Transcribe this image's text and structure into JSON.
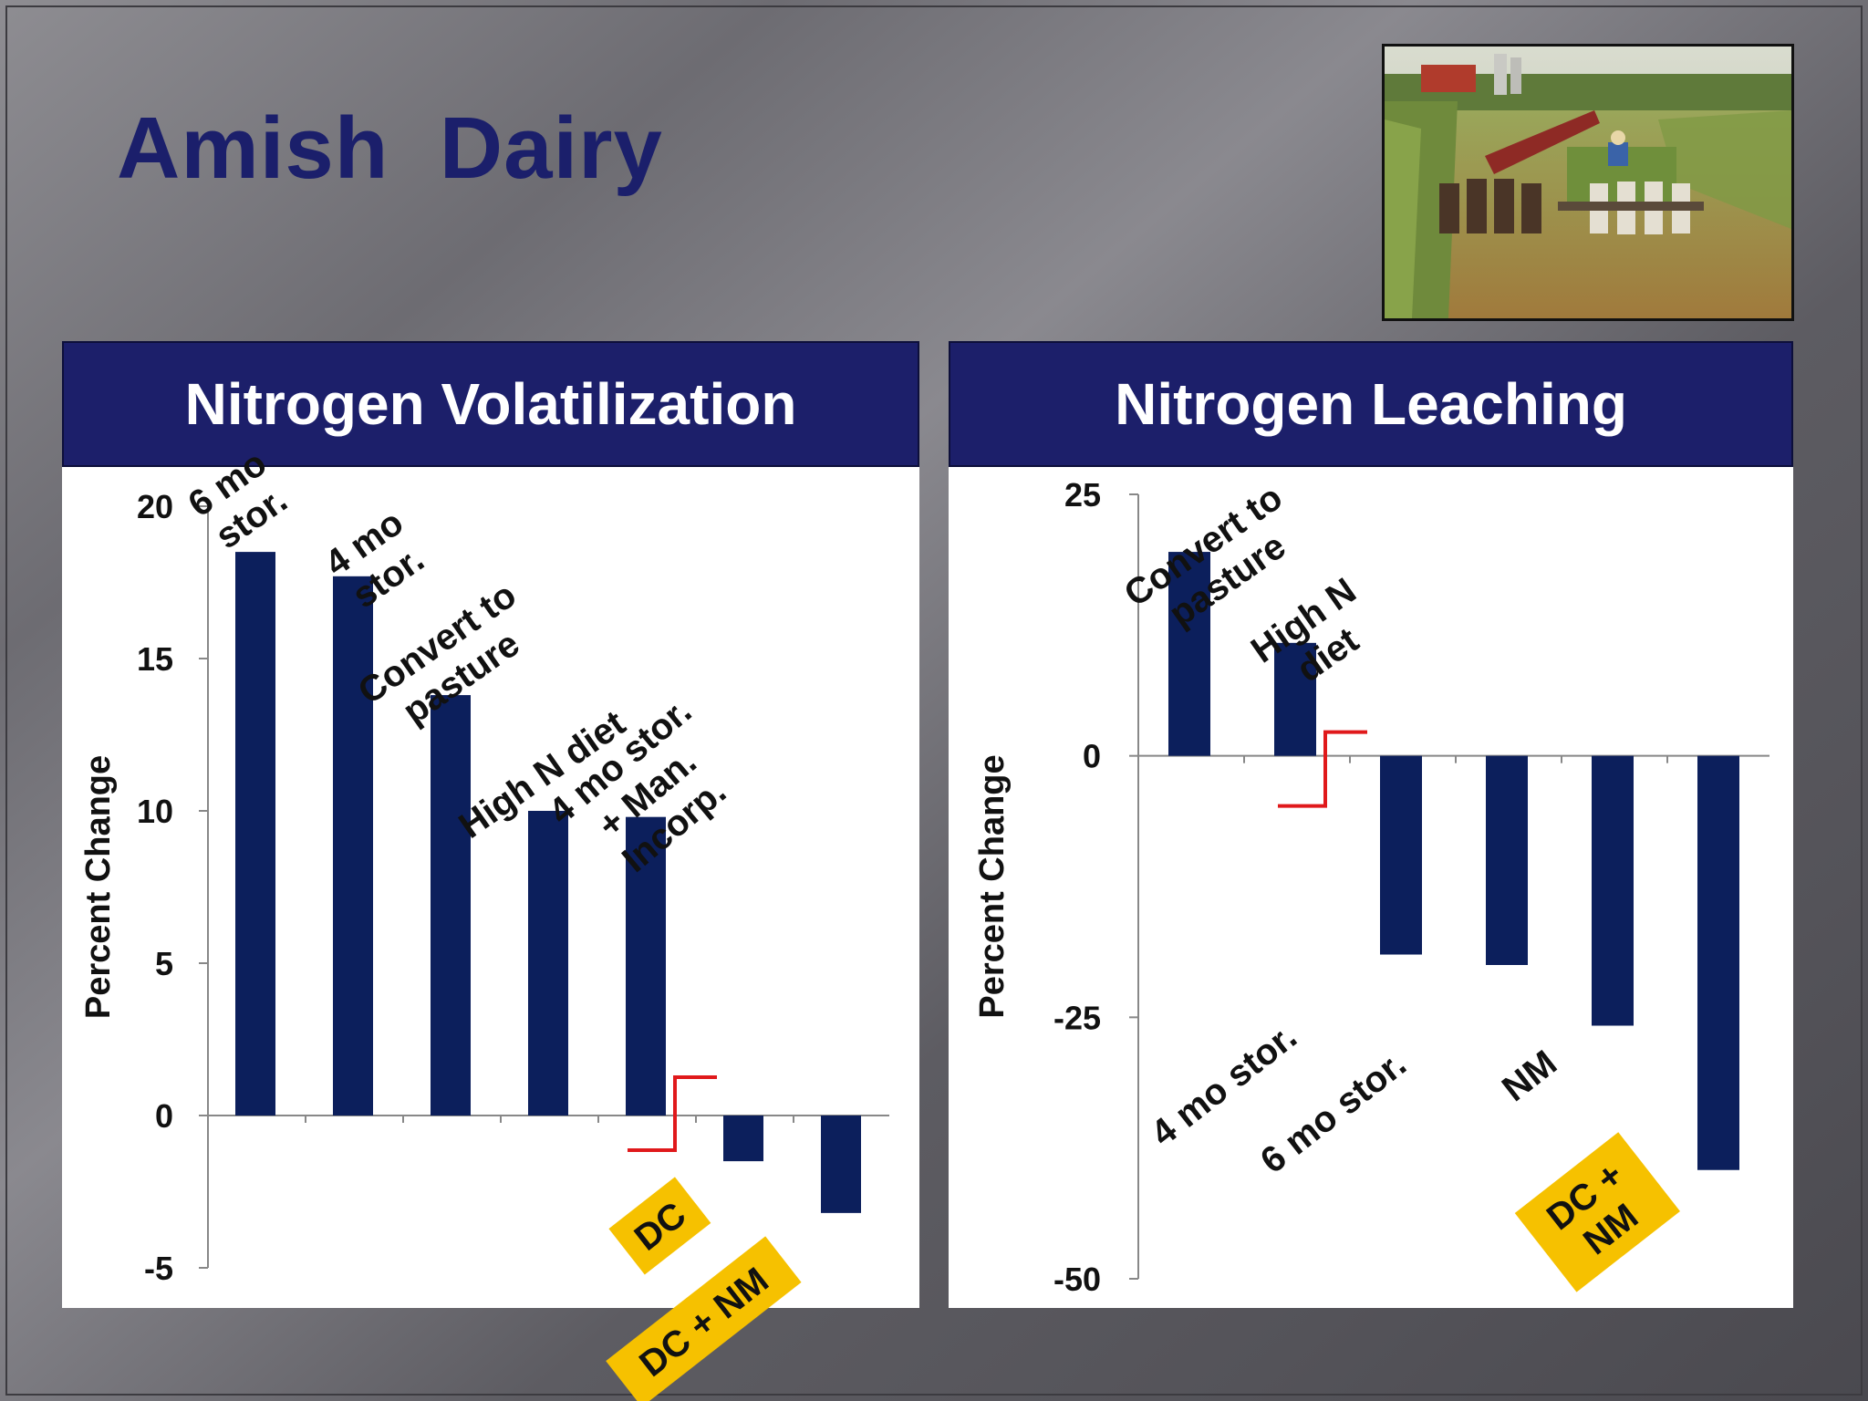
{
  "title": "Amish  Dairy",
  "photo": {
    "icon": "farm-photo"
  },
  "colors": {
    "bar": "#0c1f5c",
    "header": "#1c1f6a",
    "title": "#1b1f6b",
    "tag": "#f6c100",
    "marker": "#e0191b"
  },
  "chart_data": [
    {
      "type": "bar",
      "title": "Nitrogen Volatilization",
      "ylabel": "Percent Change",
      "xlabel": "",
      "ylim": [
        -5,
        20
      ],
      "yticks": [
        20,
        15,
        10,
        5,
        0,
        -5
      ],
      "categories": [
        "6 mo stor.",
        "4 mo stor.",
        "Convert to pasture",
        "High N diet",
        "4 mo stor. + Man. Incorp.",
        "DC",
        "DC + NM"
      ],
      "values": [
        18.5,
        17.7,
        13.8,
        10.0,
        9.8,
        -1.5,
        -3.2
      ],
      "labels": [
        {
          "lines": [
            "6 mo",
            "stor."
          ]
        },
        {
          "lines": [
            "4 mo",
            "stor."
          ]
        },
        {
          "lines": [
            "Convert to",
            "pasture"
          ]
        },
        {
          "lines": [
            "High N diet"
          ]
        },
        {
          "lines": [
            "4 mo stor.",
            "+ Man.",
            "Incorp."
          ]
        },
        {
          "lines": [
            "DC"
          ],
          "highlight": true
        },
        {
          "lines": [
            "DC + NM"
          ],
          "highlight": true
        }
      ]
    },
    {
      "type": "bar",
      "title": "Nitrogen Leaching",
      "ylabel": "Percent Change",
      "xlabel": "",
      "ylim": [
        -50,
        25
      ],
      "yticks": [
        25,
        0,
        -25,
        -50
      ],
      "categories": [
        "Convert to pasture",
        "High N diet",
        "4 mo stor.",
        "6 mo stor.",
        "NM",
        "DC + NM"
      ],
      "values": [
        19.5,
        10.8,
        -19.0,
        -20.0,
        -25.8,
        -39.6
      ],
      "labels": [
        {
          "lines": [
            "Convert to",
            "pasture"
          ]
        },
        {
          "lines": [
            "High N",
            "diet"
          ]
        },
        {
          "lines": [
            "4 mo stor."
          ]
        },
        {
          "lines": [
            "6 mo stor."
          ]
        },
        {
          "lines": [
            "NM"
          ]
        },
        {
          "lines": [
            "DC +",
            "NM"
          ],
          "highlight": true
        }
      ]
    }
  ]
}
